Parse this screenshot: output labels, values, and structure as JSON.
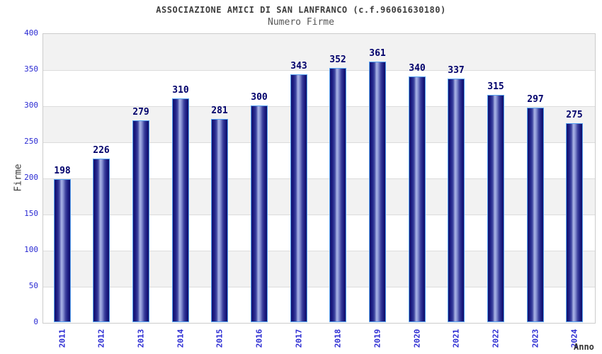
{
  "header": {
    "title": "ASSOCIAZIONE AMICI DI SAN LANFRANCO (c.f.96061630180)",
    "subtitle": "Numero Firme"
  },
  "chart_data": {
    "type": "bar",
    "title": "ASSOCIAZIONE AMICI DI SAN LANFRANCO (c.f.96061630180)",
    "subtitle": "Numero Firme",
    "xlabel": "Anno",
    "ylabel": "Firme",
    "categories": [
      "2011",
      "2012",
      "2013",
      "2014",
      "2015",
      "2016",
      "2017",
      "2018",
      "2019",
      "2020",
      "2021",
      "2022",
      "2023",
      "2024"
    ],
    "values": [
      198,
      226,
      279,
      310,
      281,
      300,
      343,
      352,
      361,
      340,
      337,
      315,
      297,
      275
    ],
    "yticks": [
      0,
      50,
      100,
      150,
      200,
      250,
      300,
      350,
      400
    ],
    "ylim": [
      0,
      400
    ],
    "grid": true,
    "legend_position": "none",
    "band_colors": [
      "#f2f2f2",
      "#ffffff"
    ],
    "colors": {
      "bar_dark": "#13136e",
      "bar_highlight": "#aab4e6",
      "bar_border": "#55a0f0",
      "value_label": "#00006b",
      "axis_tick_label": "#2a2ad2",
      "title": "#3d3d3d",
      "subtitle": "#565656",
      "axis_title": "#333333",
      "gridline": "#dcdcdc",
      "plot_border": "#cccccc"
    }
  }
}
